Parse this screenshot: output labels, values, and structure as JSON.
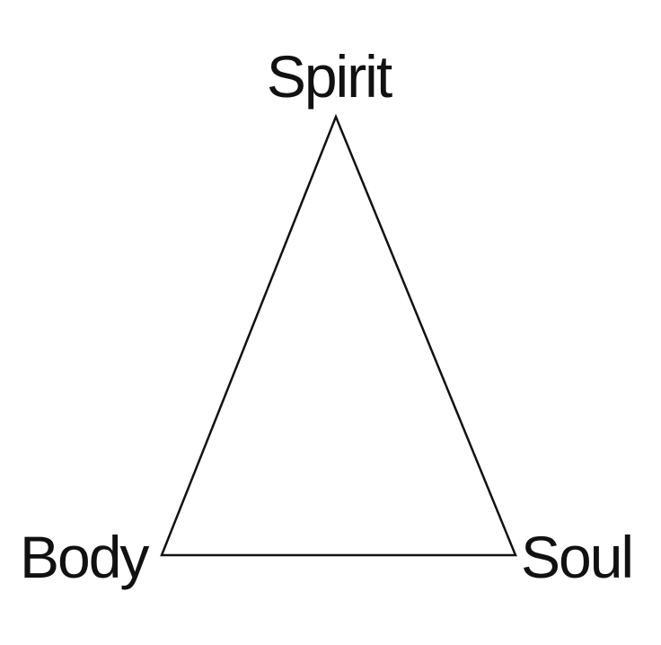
{
  "diagram": {
    "type": "triangle",
    "stroke_color": "#111111",
    "label_color": "#111111",
    "background_color": "#ffffff",
    "labels": {
      "top": "Spirit",
      "bottom_left": "Body",
      "bottom_right": "Soul"
    }
  }
}
